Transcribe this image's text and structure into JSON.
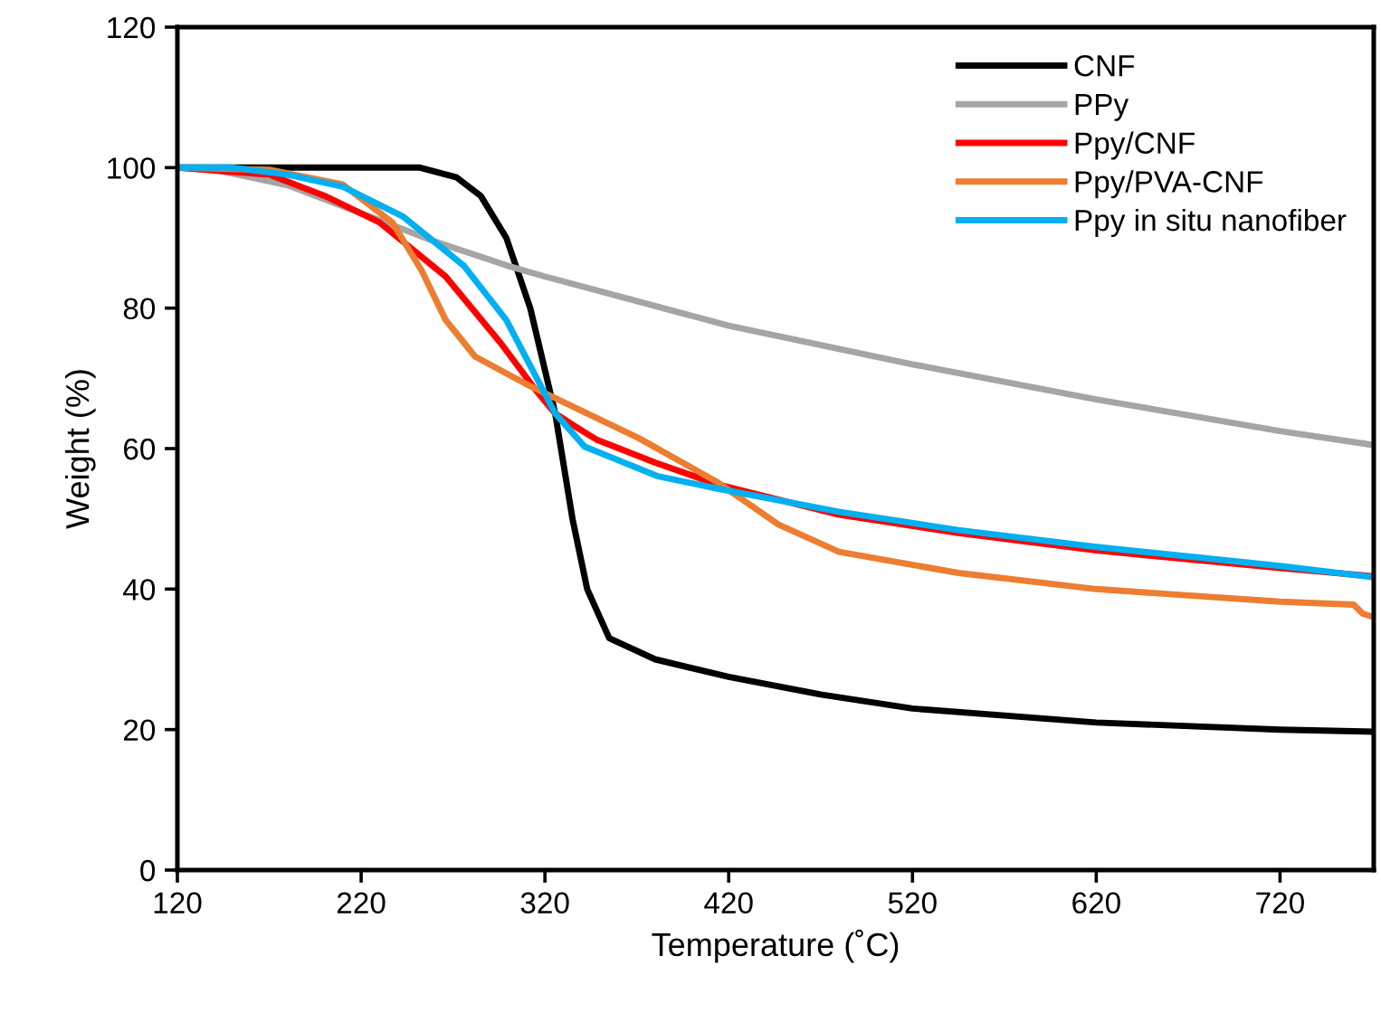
{
  "chart_data": {
    "type": "line",
    "xlabel": "Temperature (˚C)",
    "ylabel": "Weight (%)",
    "xlim": [
      120,
      771
    ],
    "xticks": [
      120,
      220,
      320,
      420,
      520,
      620,
      720
    ],
    "ylim": [
      0,
      120
    ],
    "yticks": [
      0,
      20,
      40,
      60,
      80,
      100,
      120
    ],
    "grid": false,
    "legend": "top right",
    "marker": "none",
    "line_style": "solid",
    "series": [
      {
        "name": "CNF",
        "color": "#000000",
        "x": [
          120,
          200,
          252,
          272,
          285,
          299,
          312,
          325.6,
          335,
          343,
          355,
          380,
          420,
          470,
          520,
          620,
          720,
          771
        ],
        "values": [
          100,
          100,
          100,
          98.6,
          96,
          90,
          80,
          65,
          50,
          40,
          33,
          30,
          27.5,
          25,
          23,
          21,
          20,
          19.7
        ]
      },
      {
        "name": "PPy",
        "color": "#a5a5a5",
        "x": [
          120,
          140,
          180,
          220,
          260,
          300,
          320,
          370,
          420,
          520,
          620,
          720,
          771
        ],
        "values": [
          100,
          99.7,
          97.5,
          93.5,
          89.5,
          86,
          84.5,
          81,
          77.5,
          72,
          67,
          62.5,
          60.5
        ]
      },
      {
        "name": "Ppy/CNF",
        "color": "#ff0000",
        "x": [
          120,
          170,
          200,
          230,
          266,
          296,
          316,
          325.6,
          338.6,
          348,
          380,
          414,
          480,
          545,
          620,
          720,
          771
        ],
        "values": [
          100,
          99,
          96,
          92.2,
          84.5,
          75,
          68,
          65,
          62.8,
          61.3,
          58,
          54.9,
          50.6,
          48,
          45.5,
          43,
          41.8
        ]
      },
      {
        "name": "Ppy/PVA-CNF",
        "color": "#ed7d31",
        "x": [
          120,
          170,
          210,
          237,
          253,
          266,
          282,
          309,
          325.5,
          371,
          414,
          447,
          480,
          545,
          620,
          720,
          760,
          765,
          771
        ],
        "values": [
          100,
          99.7,
          97.6,
          92.2,
          85.3,
          78.3,
          73.1,
          69.3,
          67.2,
          61.5,
          55.2,
          49.2,
          45.3,
          42.3,
          40,
          38.2,
          37.8,
          36.5,
          36
        ]
      },
      {
        "name": "Ppy in situ nanofiber",
        "color": "#00b0f0",
        "x": [
          120,
          150,
          180,
          210,
          243,
          276,
          299,
          316,
          325.6,
          341.5,
          381,
          414,
          480,
          545,
          620,
          720,
          771
        ],
        "values": [
          100,
          100,
          99,
          97.3,
          93,
          86,
          78.3,
          69.8,
          65,
          60.3,
          56.1,
          54.3,
          51,
          48.4,
          46,
          43.3,
          41.7
        ]
      }
    ]
  }
}
